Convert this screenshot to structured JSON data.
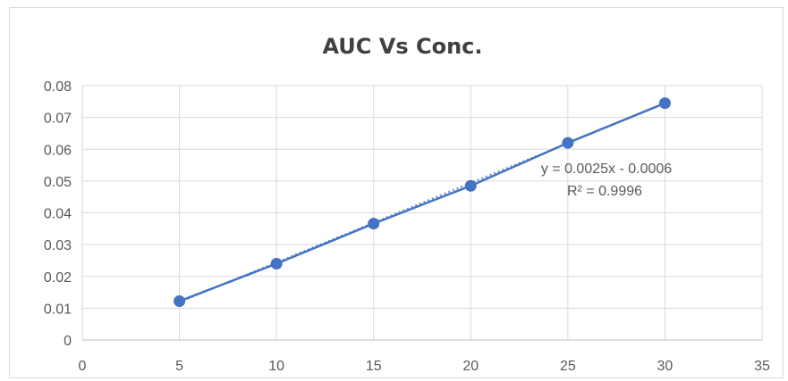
{
  "chart_data": {
    "type": "scatter",
    "title": "AUC Vs Conc.",
    "xlabel": "",
    "ylabel": "",
    "xlim": [
      0,
      35
    ],
    "ylim": [
      0,
      0.08
    ],
    "x_ticks": [
      "0",
      "5",
      "10",
      "15",
      "20",
      "25",
      "30",
      "35"
    ],
    "y_ticks": [
      "0",
      "0.01",
      "0.02",
      "0.03",
      "0.04",
      "0.05",
      "0.06",
      "0.07",
      "0.08"
    ],
    "grid": true,
    "series": [
      {
        "x": [
          5,
          10,
          15,
          20,
          25,
          30
        ],
        "values": [
          0.0122,
          0.024,
          0.0366,
          0.0485,
          0.062,
          0.0745
        ],
        "color": "#4472c4"
      }
    ],
    "trendline": {
      "slope": 0.0025,
      "intercept": -0.0006,
      "style": "dotted",
      "equation": "y = 0.0025x - 0.0006",
      "r_squared": "R² = 0.9996"
    }
  }
}
